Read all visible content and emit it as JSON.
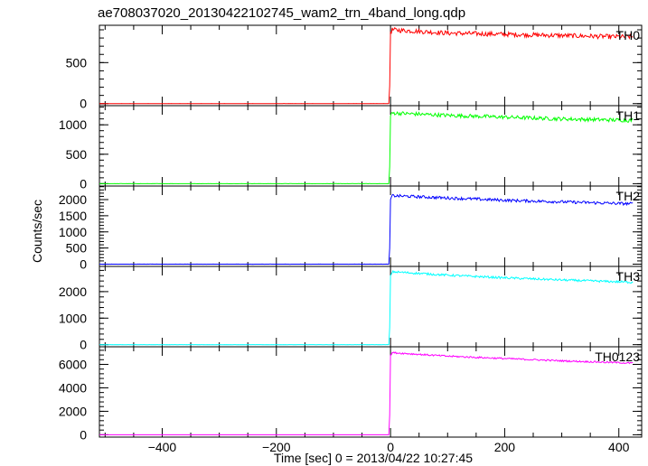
{
  "chart_data": {
    "type": "line",
    "title": "ae708037020_20130422102745_wam2_trn_4band_long.qdp",
    "xlabel": "Time [sec] 0 = 2013/04/22 10:27:45",
    "ylabel": "Counts/sec",
    "xlim": [
      -510,
      440
    ],
    "x_ticks": [
      -400,
      -200,
      0,
      200,
      400
    ],
    "x_tick_labels": [
      "−400",
      "−200",
      "0",
      "200",
      "400"
    ],
    "grid": false,
    "legend": "none",
    "panels": [
      {
        "name": "TH0",
        "color": "#ff0000",
        "ylim": [
          -25,
          955
        ],
        "y_ticks": [
          0,
          500
        ],
        "y_tick_labels": [
          "0",
          "500"
        ],
        "baseline": 0,
        "x": [
          -510,
          -2,
          0,
          3,
          100,
          200,
          300,
          400,
          425
        ],
        "y": [
          0,
          0,
          870,
          900,
          860,
          845,
          830,
          815,
          815
        ],
        "noise": 28
      },
      {
        "name": "TH1",
        "color": "#00ff00",
        "ylim": [
          -40,
          1325
        ],
        "y_ticks": [
          0,
          500,
          1000
        ],
        "y_tick_labels": [
          "0",
          "500",
          "1000"
        ],
        "baseline": 0,
        "x": [
          -510,
          -2,
          0,
          3,
          100,
          200,
          300,
          400,
          425
        ],
        "y": [
          0,
          0,
          1150,
          1200,
          1160,
          1130,
          1100,
          1080,
          1075
        ],
        "noise": 32
      },
      {
        "name": "TH2",
        "color": "#0000ff",
        "ylim": [
          -70,
          2420
        ],
        "y_ticks": [
          0,
          500,
          1000,
          1500,
          2000
        ],
        "y_tick_labels": [
          "0",
          "500",
          "1000",
          "1500",
          "2000"
        ],
        "baseline": 0,
        "x": [
          -510,
          -2,
          0,
          3,
          100,
          200,
          300,
          400,
          425
        ],
        "y": [
          0,
          0,
          2000,
          2120,
          2050,
          1980,
          1930,
          1880,
          1870
        ],
        "noise": 45
      },
      {
        "name": "TH3",
        "color": "#00ffff",
        "ylim": [
          -80,
          2950
        ],
        "y_ticks": [
          0,
          1000,
          2000
        ],
        "y_tick_labels": [
          "0",
          "1000",
          "2000"
        ],
        "baseline": 0,
        "x": [
          -510,
          -2,
          0,
          3,
          100,
          200,
          300,
          400,
          425
        ],
        "y": [
          0,
          0,
          2600,
          2750,
          2620,
          2520,
          2440,
          2370,
          2350
        ],
        "noise": 40
      },
      {
        "name": "TH0123",
        "color": "#ff00ff",
        "ylim": [
          -200,
          7500
        ],
        "y_ticks": [
          0,
          2000,
          4000,
          6000
        ],
        "y_tick_labels": [
          "0",
          "2000",
          "4000",
          "6000"
        ],
        "baseline": 0,
        "x": [
          -510,
          -2,
          0,
          3,
          100,
          200,
          300,
          400,
          425
        ],
        "y": [
          0,
          0,
          6800,
          7000,
          6700,
          6500,
          6300,
          6150,
          6100
        ],
        "noise": 70
      }
    ]
  }
}
